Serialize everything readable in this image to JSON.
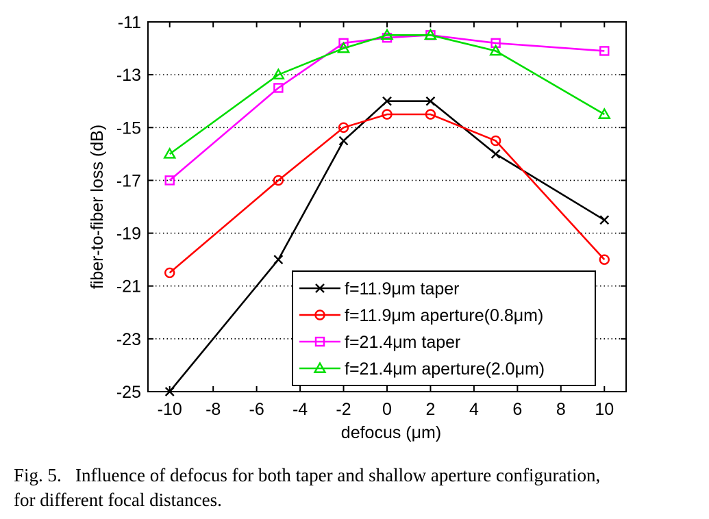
{
  "chart_data": {
    "type": "line",
    "xlabel": "defocus (μm)",
    "ylabel": "fiber-to-fiber loss (dB)",
    "xlim": [
      -11,
      11
    ],
    "ylim": [
      -25,
      -11
    ],
    "xticks": [
      -10,
      -8,
      -6,
      -4,
      -2,
      0,
      2,
      4,
      6,
      8,
      10
    ],
    "yticks": [
      -11,
      -13,
      -15,
      -17,
      -19,
      -21,
      -23,
      -25
    ],
    "grid": "horizontal dotted",
    "legend_position": "bottom-right",
    "series": [
      {
        "name": "f=11.9μm taper",
        "color": "#000000",
        "marker": "x",
        "x": [
          -10,
          -5,
          -2,
          0,
          2,
          5,
          10
        ],
        "y": [
          -25,
          -20,
          -15.5,
          -14,
          -14,
          -16,
          -18.5
        ]
      },
      {
        "name": "f=11.9μm aperture(0.8μm)",
        "color": "#ff0000",
        "marker": "circle",
        "x": [
          -10,
          -5,
          -2,
          0,
          2,
          5,
          10
        ],
        "y": [
          -20.5,
          -17,
          -15,
          -14.5,
          -14.5,
          -15.5,
          -20
        ]
      },
      {
        "name": "f=21.4μm taper",
        "color": "#ff00ff",
        "marker": "square",
        "x": [
          -10,
          -5,
          -2,
          0,
          2,
          5,
          10
        ],
        "y": [
          -17,
          -13.5,
          -11.8,
          -11.6,
          -11.5,
          -11.8,
          -12.1
        ]
      },
      {
        "name": "f=21.4μm aperture(2.0μm)",
        "color": "#00dd00",
        "marker": "triangle",
        "x": [
          -10,
          -5,
          -2,
          0,
          2,
          5,
          10
        ],
        "y": [
          -16,
          -13,
          -12,
          -11.5,
          -11.5,
          -12.1,
          -14.5
        ]
      }
    ]
  },
  "caption": {
    "line1": "Fig. 5.   Influence of defocus for both taper and shallow aperture configuration,",
    "line2": "for different focal distances."
  }
}
